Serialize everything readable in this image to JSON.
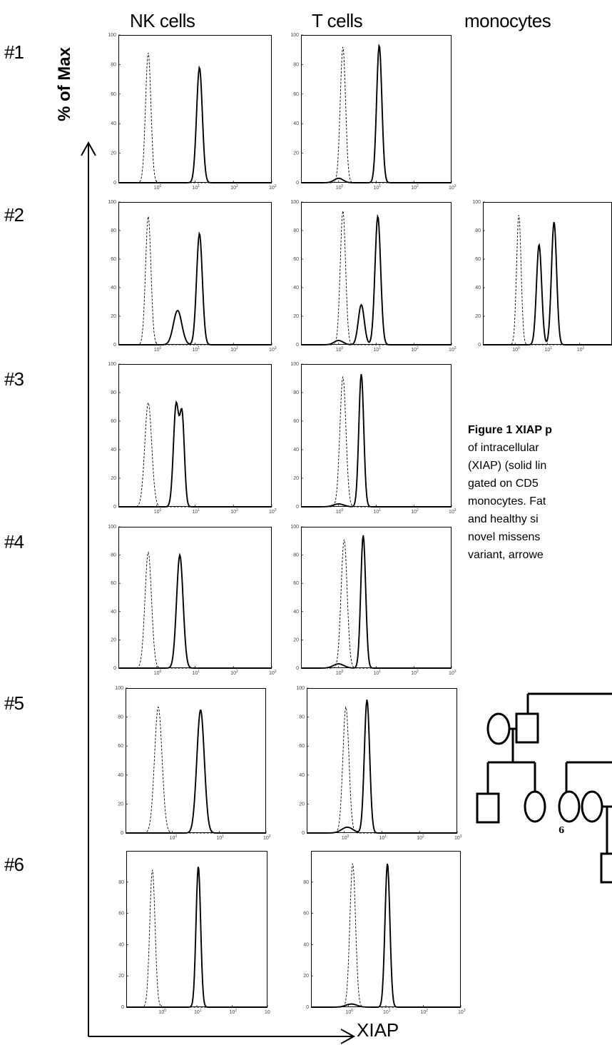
{
  "figure": {
    "column_headers": [
      "NK cells",
      "T cells",
      "monocytes"
    ],
    "row_labels": [
      "#1",
      "#2",
      "#3",
      "#4",
      "#5",
      "#6"
    ],
    "y_axis_label": "% of Max",
    "x_axis_label": "XIAP"
  },
  "caption": {
    "lines": [
      {
        "bold": "Figure 1 XIAP p",
        "text": ""
      },
      {
        "bold": "",
        "text": "of intracellular"
      },
      {
        "bold": "",
        "text": "(XIAP) (solid lin"
      },
      {
        "bold": "",
        "text": "gated on CD5"
      },
      {
        "bold": "",
        "text": "monocytes. Fat"
      },
      {
        "bold": "",
        "text": "and healthy si"
      },
      {
        "bold": "",
        "text": "novel missens"
      },
      {
        "bold": "",
        "text": "variant, arrowe"
      }
    ]
  },
  "pedigree": {
    "individual_label": "6"
  },
  "chart_data": [
    {
      "type": "line",
      "title": "",
      "panel": "#1 NK cells",
      "xscale": "log",
      "xlim": [
        0.1,
        1000
      ],
      "ylim": [
        0,
        100
      ],
      "yticks": [
        0,
        20,
        40,
        60,
        80,
        100
      ],
      "xticks": [
        "10^0",
        "10^1",
        "10^2",
        "10^3"
      ],
      "series": [
        {
          "style": "dashed",
          "peaks": [
            {
              "x": 0.6,
              "y": 88,
              "width": 0.07
            }
          ]
        },
        {
          "style": "solid",
          "peaks": [
            {
              "x": 13,
              "y": 78,
              "width": 0.075
            }
          ]
        }
      ]
    },
    {
      "type": "line",
      "title": "",
      "panel": "#1 T cells",
      "xscale": "log",
      "xlim": [
        0.1,
        1000
      ],
      "ylim": [
        0,
        100
      ],
      "yticks": [
        0,
        20,
        40,
        60,
        80,
        100
      ],
      "xticks": [
        "10^0",
        "10^1",
        "10^2",
        "10^3"
      ],
      "series": [
        {
          "style": "dashed",
          "peaks": [
            {
              "x": 1.3,
              "y": 92,
              "width": 0.07
            }
          ]
        },
        {
          "style": "solid",
          "peaks": [
            {
              "x": 1.0,
              "y": 3,
              "width": 0.12
            },
            {
              "x": 12,
              "y": 93,
              "width": 0.07
            }
          ]
        }
      ]
    },
    {
      "type": "line",
      "title": "",
      "panel": "#2 NK cells",
      "xscale": "log",
      "xlim": [
        0.1,
        1000
      ],
      "ylim": [
        0,
        100
      ],
      "yticks": [
        0,
        20,
        40,
        60,
        80,
        100
      ],
      "xticks": [
        "10^0",
        "10^1",
        "10^2",
        "10^3"
      ],
      "series": [
        {
          "style": "dashed",
          "peaks": [
            {
              "x": 0.6,
              "y": 90,
              "width": 0.07
            }
          ]
        },
        {
          "style": "solid",
          "peaks": [
            {
              "x": 3.5,
              "y": 24,
              "width": 0.11
            },
            {
              "x": 13,
              "y": 78,
              "width": 0.075
            }
          ]
        }
      ]
    },
    {
      "type": "line",
      "title": "",
      "panel": "#2 T cells",
      "xscale": "log",
      "xlim": [
        0.1,
        1000
      ],
      "ylim": [
        0,
        100
      ],
      "yticks": [
        0,
        20,
        40,
        60,
        80,
        100
      ],
      "xticks": [
        "10^0",
        "10^1",
        "10^2",
        "10^3"
      ],
      "series": [
        {
          "style": "dashed",
          "peaks": [
            {
              "x": 1.3,
              "y": 94,
              "width": 0.07
            }
          ]
        },
        {
          "style": "solid",
          "peaks": [
            {
              "x": 1.0,
              "y": 3,
              "width": 0.12
            },
            {
              "x": 4,
              "y": 28,
              "width": 0.08
            },
            {
              "x": 11,
              "y": 90,
              "width": 0.075
            }
          ]
        }
      ]
    },
    {
      "type": "line",
      "title": "",
      "panel": "#2 monocytes",
      "xscale": "log",
      "xlim": [
        0.1,
        1000
      ],
      "ylim": [
        0,
        100
      ],
      "yticks": [
        0,
        20,
        40,
        60,
        80,
        100
      ],
      "xticks": [
        "10^0",
        "10^1",
        "10^2"
      ],
      "series": [
        {
          "style": "dashed",
          "peaks": [
            {
              "x": 1.3,
              "y": 91,
              "width": 0.07
            }
          ]
        },
        {
          "style": "solid",
          "peaks": [
            {
              "x": 5.5,
              "y": 70,
              "width": 0.08
            },
            {
              "x": 16,
              "y": 86,
              "width": 0.08
            }
          ]
        }
      ]
    },
    {
      "type": "line",
      "title": "",
      "panel": "#3 NK cells",
      "xscale": "log",
      "xlim": [
        0.1,
        1000
      ],
      "ylim": [
        0,
        100
      ],
      "yticks": [
        0,
        20,
        40,
        60,
        80,
        100
      ],
      "xticks": [
        "10^0",
        "10^1",
        "10^2",
        "10^3"
      ],
      "series": [
        {
          "style": "dashed",
          "peaks": [
            {
              "x": 0.6,
              "y": 73,
              "width": 0.09
            }
          ]
        },
        {
          "style": "solid",
          "peaks": [
            {
              "x": 3.2,
              "y": 71,
              "width": 0.07
            },
            {
              "x": 4.6,
              "y": 62,
              "width": 0.06
            }
          ]
        }
      ]
    },
    {
      "type": "line",
      "title": "",
      "panel": "#3 T cells",
      "xscale": "log",
      "xlim": [
        0.1,
        1000
      ],
      "ylim": [
        0,
        100
      ],
      "yticks": [
        0,
        20,
        40,
        60,
        80,
        100
      ],
      "xticks": [
        "10^0",
        "10^1",
        "10^2",
        "10^3"
      ],
      "series": [
        {
          "style": "dashed",
          "peaks": [
            {
              "x": 1.3,
              "y": 91,
              "width": 0.08
            }
          ]
        },
        {
          "style": "solid",
          "peaks": [
            {
              "x": 1.0,
              "y": 2,
              "width": 0.14
            },
            {
              "x": 4,
              "y": 93,
              "width": 0.065
            }
          ]
        }
      ]
    },
    {
      "type": "line",
      "title": "",
      "panel": "#4 NK cells",
      "xscale": "log",
      "xlim": [
        0.1,
        1000
      ],
      "ylim": [
        0,
        100
      ],
      "yticks": [
        0,
        20,
        40,
        60,
        80,
        100
      ],
      "xticks": [
        "10^0",
        "10^1",
        "10^2",
        "10^3"
      ],
      "series": [
        {
          "style": "dashed",
          "peaks": [
            {
              "x": 0.6,
              "y": 82,
              "width": 0.085
            }
          ]
        },
        {
          "style": "solid",
          "peaks": [
            {
              "x": 4,
              "y": 80,
              "width": 0.085
            }
          ]
        }
      ]
    },
    {
      "type": "line",
      "title": "",
      "panel": "#4 T cells",
      "xscale": "log",
      "xlim": [
        0.1,
        1000
      ],
      "ylim": [
        0,
        100
      ],
      "yticks": [
        0,
        20,
        40,
        60,
        80,
        100
      ],
      "xticks": [
        "10^0",
        "10^1",
        "10^2",
        "10^3"
      ],
      "series": [
        {
          "style": "dashed",
          "peaks": [
            {
              "x": 1.4,
              "y": 91,
              "width": 0.08
            }
          ]
        },
        {
          "style": "solid",
          "peaks": [
            {
              "x": 1.0,
              "y": 3,
              "width": 0.14
            },
            {
              "x": 4.5,
              "y": 94,
              "width": 0.065
            }
          ]
        }
      ]
    },
    {
      "type": "line",
      "title": "",
      "panel": "#5 NK cells",
      "xscale": "log",
      "xlim": [
        0.1,
        100
      ],
      "ylim": [
        0,
        100
      ],
      "yticks": [
        0,
        20,
        40,
        60,
        80,
        100
      ],
      "xticks": [
        "10^0",
        "10^1",
        "10^2"
      ],
      "series": [
        {
          "style": "dashed",
          "peaks": [
            {
              "x": 0.5,
              "y": 87,
              "width": 0.08
            }
          ]
        },
        {
          "style": "solid",
          "peaks": [
            {
              "x": 4,
              "y": 85,
              "width": 0.08
            }
          ]
        }
      ]
    },
    {
      "type": "line",
      "title": "",
      "panel": "#5 T cells",
      "xscale": "log",
      "xlim": [
        0.1,
        1000
      ],
      "ylim": [
        0,
        100
      ],
      "yticks": [
        0,
        20,
        40,
        60,
        80,
        100
      ],
      "xticks": [
        "10^0",
        "10^1",
        "10^2",
        "10^3"
      ],
      "series": [
        {
          "style": "dashed",
          "peaks": [
            {
              "x": 1.1,
              "y": 87,
              "width": 0.08
            }
          ]
        },
        {
          "style": "solid",
          "peaks": [
            {
              "x": 1.2,
              "y": 4,
              "width": 0.15
            },
            {
              "x": 4,
              "y": 92,
              "width": 0.07
            }
          ]
        }
      ]
    },
    {
      "type": "line",
      "title": "",
      "panel": "#6 NK cells",
      "xscale": "log",
      "xlim": [
        0.1,
        1000
      ],
      "ylim": [
        0,
        100
      ],
      "yticks": [
        0,
        20,
        40,
        60,
        80
      ],
      "xticks": [
        "10^0",
        "10^1",
        "10^2",
        "10"
      ],
      "series": [
        {
          "style": "dashed",
          "peaks": [
            {
              "x": 0.55,
              "y": 88,
              "width": 0.075
            }
          ]
        },
        {
          "style": "solid",
          "peaks": [
            {
              "x": 11,
              "y": 90,
              "width": 0.065
            }
          ]
        }
      ]
    },
    {
      "type": "line",
      "title": "",
      "panel": "#6 T cells",
      "xscale": "log",
      "xlim": [
        0.1,
        1000
      ],
      "ylim": [
        0,
        100
      ],
      "yticks": [
        0,
        20,
        40,
        60,
        80
      ],
      "xticks": [
        "10^0",
        "10^1",
        "10^2",
        "10^3"
      ],
      "series": [
        {
          "style": "dashed",
          "peaks": [
            {
              "x": 1.3,
              "y": 92,
              "width": 0.075
            }
          ]
        },
        {
          "style": "solid",
          "peaks": [
            {
              "x": 1.2,
              "y": 2,
              "width": 0.15
            },
            {
              "x": 11,
              "y": 92,
              "width": 0.065
            }
          ]
        }
      ]
    }
  ]
}
